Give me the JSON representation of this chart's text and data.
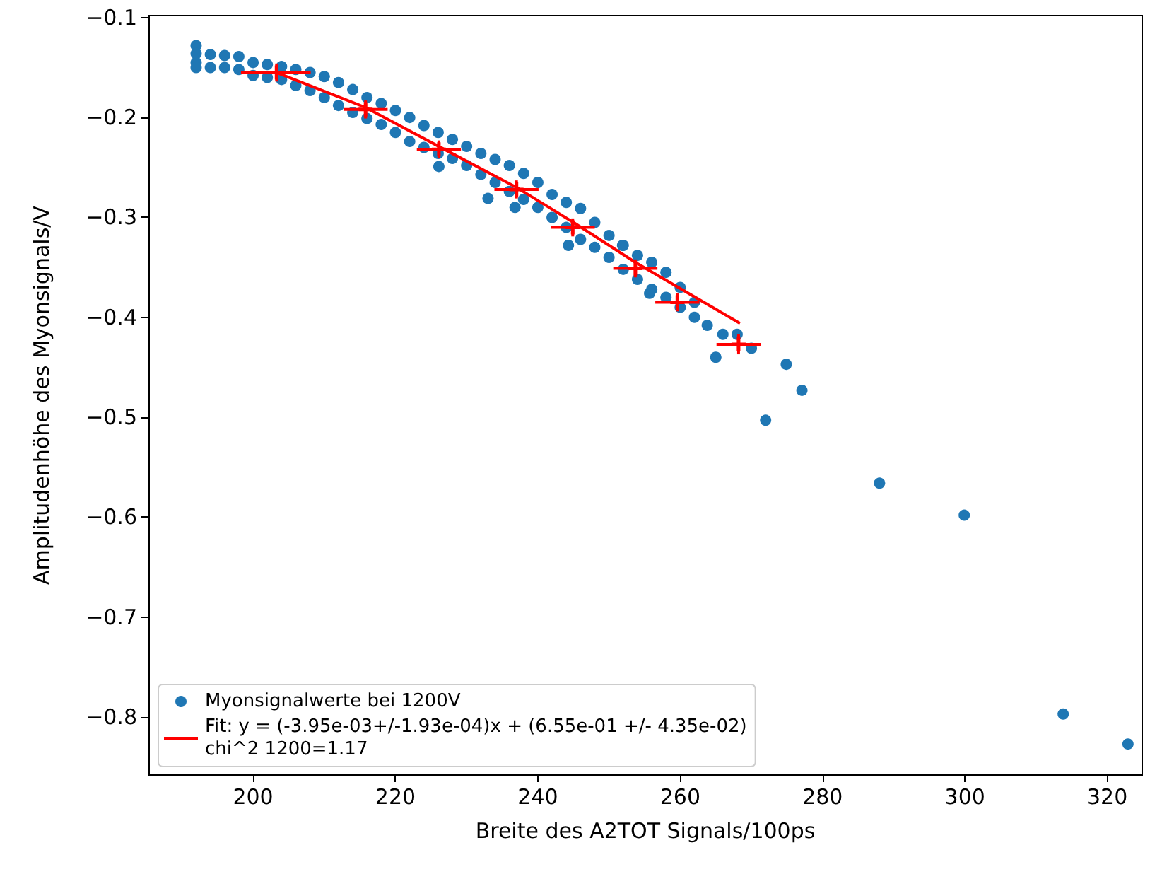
{
  "chart_data": {
    "type": "scatter",
    "xlabel": "Breite des A2TOT Signals/100ps",
    "ylabel": "Amplitudenhöhe des Myonsignals/V",
    "xlim": [
      185.3,
      324.9
    ],
    "xticks": [
      200,
      220,
      240,
      260,
      280,
      300,
      320
    ],
    "ylim": [
      -0.858,
      -0.098
    ],
    "yticks": [
      -0.1,
      -0.2,
      -0.3,
      -0.4,
      -0.5,
      -0.6,
      -0.7,
      -0.8
    ],
    "grid": false,
    "legend": "bottom left",
    "marker": "circle",
    "series": [
      {
        "name": "Myonsignalwerte bei 1200V",
        "color": "#1f77b4",
        "x": [
          192,
          192,
          192,
          192,
          194,
          194,
          196,
          196,
          198,
          198,
          200,
          200,
          202,
          202,
          204,
          204,
          206,
          206,
          208,
          208,
          210,
          210,
          212,
          212,
          214,
          214,
          216,
          216,
          218,
          218,
          220,
          220,
          222,
          222,
          224,
          224,
          226,
          226,
          226.1,
          228,
          228,
          230,
          230,
          232,
          232,
          233,
          234,
          234,
          236,
          236,
          236.8,
          238,
          238,
          240,
          240,
          242,
          242,
          244,
          244,
          244.3,
          246,
          246,
          248,
          248,
          250,
          250,
          251.9,
          252,
          252,
          254,
          254,
          255.7,
          256,
          256,
          258,
          258,
          260,
          260,
          262,
          262,
          263.8,
          265,
          266,
          268,
          270,
          272,
          274.9,
          277.1,
          288,
          299.9,
          313.8,
          322.9
        ],
        "values": [
          -0.128,
          -0.136,
          -0.145,
          -0.15,
          -0.137,
          -0.15,
          -0.138,
          -0.15,
          -0.139,
          -0.152,
          -0.145,
          -0.158,
          -0.147,
          -0.16,
          -0.149,
          -0.162,
          -0.152,
          -0.168,
          -0.155,
          -0.173,
          -0.159,
          -0.18,
          -0.165,
          -0.188,
          -0.172,
          -0.195,
          -0.18,
          -0.201,
          -0.186,
          -0.207,
          -0.193,
          -0.215,
          -0.2,
          -0.224,
          -0.208,
          -0.23,
          -0.215,
          -0.236,
          -0.249,
          -0.222,
          -0.241,
          -0.229,
          -0.248,
          -0.236,
          -0.257,
          -0.281,
          -0.242,
          -0.265,
          -0.248,
          -0.274,
          -0.29,
          -0.256,
          -0.282,
          -0.265,
          -0.29,
          -0.277,
          -0.3,
          -0.285,
          -0.31,
          -0.328,
          -0.291,
          -0.322,
          -0.305,
          -0.33,
          -0.318,
          -0.34,
          -0.328,
          -0.328,
          -0.352,
          -0.338,
          -0.362,
          -0.376,
          -0.345,
          -0.372,
          -0.355,
          -0.38,
          -0.37,
          -0.39,
          -0.385,
          -0.4,
          -0.408,
          -0.44,
          -0.417,
          -0.417,
          -0.431,
          -0.503,
          -0.447,
          -0.473,
          -0.566,
          -0.598,
          -0.797,
          -0.827
        ]
      },
      {
        "type": "line",
        "name": "Fit: y = (-3.95e-03+/-1.93e-04)x + (6.55e-01 +/- 4.35e-02)\nchi^2 1200=1.17",
        "color": "#ff0000",
        "marker": "none",
        "x": [
          198.3,
          203.3,
          215.8,
          226.1,
          237,
          245,
          253.7,
          268.4
        ],
        "values": [
          -0.155,
          -0.155,
          -0.19,
          -0.229,
          -0.27,
          -0.305,
          -0.345,
          -0.406
        ]
      },
      {
        "color": "#ff0000",
        "marker": "cross",
        "x": [
          203.3,
          215.8,
          226.1,
          237,
          244.9,
          253.7,
          259.6,
          268.2
        ],
        "values": [
          -0.155,
          -0.192,
          -0.232,
          -0.272,
          -0.31,
          -0.351,
          -0.385,
          -0.427
        ],
        "errors": [
          0.009,
          0.009,
          0.009,
          0.009,
          0.009,
          0.009,
          0.009,
          0.01
        ],
        "xerrors": [
          4.8,
          3.1,
          3.1,
          3.1,
          3.1,
          3.1,
          3.1,
          3.1
        ]
      }
    ]
  }
}
